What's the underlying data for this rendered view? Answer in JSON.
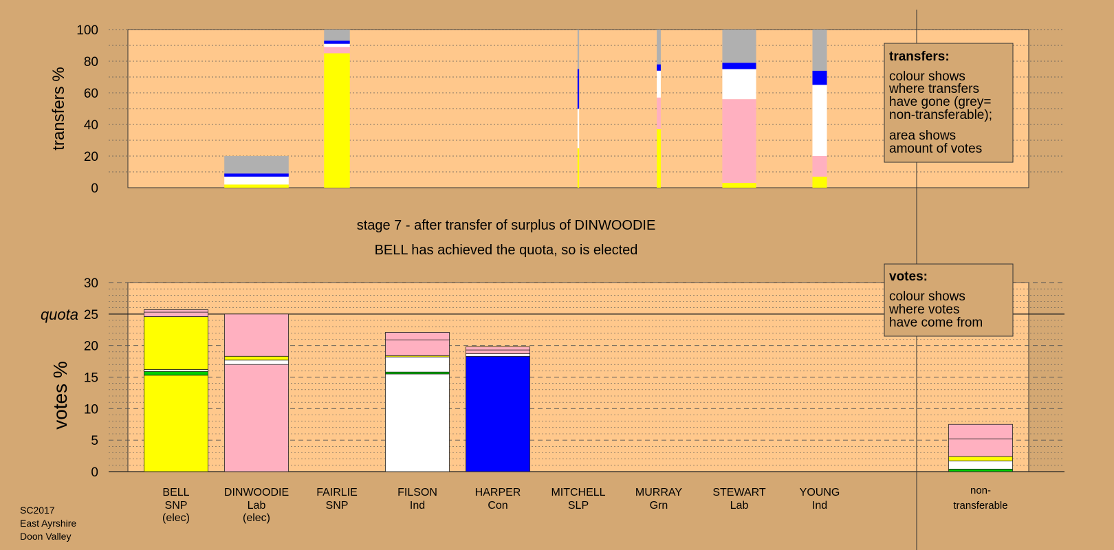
{
  "colors": {
    "background": "#d4a873",
    "plot_background": "#ffc88c",
    "SNP": "#ffff00",
    "Lab": "#ffb0c0",
    "Ind": "#ffffff",
    "Con": "#0000ff",
    "SLP": "#ff0000",
    "Grn": "#00cc00",
    "nontransferable": "#b0b0b0"
  },
  "chart_data": [
    {
      "type": "bar",
      "stacked": true,
      "ylabel": "transfers %",
      "ylim": [
        0,
        100
      ],
      "yticks": [
        0,
        20,
        40,
        60,
        80,
        100
      ],
      "categories": [
        "BELL",
        "DINWOODIE",
        "FAIRLIE",
        "FILSON",
        "HARPER",
        "MITCHELL",
        "MURRAY",
        "STEWART",
        "YOUNG"
      ],
      "note": "bar width shows amount of votes transferred",
      "bars": [
        {
          "candidate": "DINWOODIE",
          "width": 0.8,
          "segments": [
            {
              "color": "SNP",
              "value": 2
            },
            {
              "color": "Ind",
              "value": 5
            },
            {
              "color": "Con",
              "value": 2
            },
            {
              "color": "nontransferable",
              "value": 11
            }
          ]
        },
        {
          "candidate": "FAIRLIE",
          "width": 0.32,
          "segments": [
            {
              "color": "SNP",
              "value": 85
            },
            {
              "color": "Lab",
              "value": 4
            },
            {
              "color": "Ind",
              "value": 2
            },
            {
              "color": "Con",
              "value": 2
            },
            {
              "color": "nontransferable",
              "value": 7
            }
          ]
        },
        {
          "candidate": "MITCHELL",
          "width": 0.02,
          "segments": [
            {
              "color": "SNP",
              "value": 25
            },
            {
              "color": "Ind",
              "value": 25
            },
            {
              "color": "Con",
              "value": 25
            },
            {
              "color": "nontransferable",
              "value": 25
            }
          ]
        },
        {
          "candidate": "MURRAY",
          "width": 0.05,
          "segments": [
            {
              "color": "SNP",
              "value": 37
            },
            {
              "color": "Lab",
              "value": 20
            },
            {
              "color": "Ind",
              "value": 17
            },
            {
              "color": "Con",
              "value": 4
            },
            {
              "color": "nontransferable",
              "value": 22
            }
          ]
        },
        {
          "candidate": "STEWART",
          "width": 0.42,
          "segments": [
            {
              "color": "SNP",
              "value": 3
            },
            {
              "color": "Lab",
              "value": 53
            },
            {
              "color": "Ind",
              "value": 19
            },
            {
              "color": "Con",
              "value": 4
            },
            {
              "color": "nontransferable",
              "value": 21
            }
          ]
        },
        {
          "candidate": "YOUNG",
          "width": 0.18,
          "segments": [
            {
              "color": "SNP",
              "value": 7
            },
            {
              "color": "Lab",
              "value": 13
            },
            {
              "color": "Ind",
              "value": 45
            },
            {
              "color": "Con",
              "value": 9
            },
            {
              "color": "nontransferable",
              "value": 26
            }
          ]
        }
      ]
    },
    {
      "type": "bar",
      "stacked": true,
      "ylabel": "votes %",
      "ylim": [
        0,
        30
      ],
      "yticks": [
        0,
        5,
        10,
        15,
        20,
        25,
        30
      ],
      "quota": 25,
      "quota_label": "quota",
      "categories": [
        "BELL",
        "DINWOODIE",
        "FAIRLIE",
        "FILSON",
        "HARPER",
        "MITCHELL",
        "MURRAY",
        "STEWART",
        "YOUNG",
        "non-transferable"
      ],
      "bars": [
        {
          "candidate": "BELL",
          "segments": [
            {
              "color": "SNP",
              "value": 15.3
            },
            {
              "color": "Grn",
              "value": 0.6
            },
            {
              "color": "Ind",
              "value": 0.3
            },
            {
              "color": "SNP",
              "value": 8.4
            },
            {
              "color": "Lab",
              "value": 0.7
            },
            {
              "color": "Lab",
              "value": 0.4
            }
          ]
        },
        {
          "candidate": "DINWOODIE",
          "segments": [
            {
              "color": "Lab",
              "value": 17.0
            },
            {
              "color": "Ind",
              "value": 0.7
            },
            {
              "color": "SNP",
              "value": 0.6
            },
            {
              "color": "Lab",
              "value": 6.7
            }
          ]
        },
        {
          "candidate": "FAIRLIE",
          "segments": []
        },
        {
          "candidate": "FILSON",
          "segments": [
            {
              "color": "Ind",
              "value": 15.5
            },
            {
              "color": "Grn",
              "value": 0.3
            },
            {
              "color": "Ind",
              "value": 2.4
            },
            {
              "color": "SNP",
              "value": 0.2
            },
            {
              "color": "Lab",
              "value": 2.5
            },
            {
              "color": "Lab",
              "value": 1.2
            }
          ]
        },
        {
          "candidate": "HARPER",
          "segments": [
            {
              "color": "Con",
              "value": 18.3
            },
            {
              "color": "Ind",
              "value": 0.4
            },
            {
              "color": "Lab",
              "value": 0.6
            },
            {
              "color": "Lab",
              "value": 0.5
            }
          ]
        },
        {
          "candidate": "MITCHELL",
          "segments": []
        },
        {
          "candidate": "MURRAY",
          "segments": []
        },
        {
          "candidate": "STEWART",
          "segments": []
        },
        {
          "candidate": "YOUNG",
          "segments": []
        },
        {
          "candidate": "non-transferable",
          "segments": [
            {
              "color": "Grn",
              "value": 0.4
            },
            {
              "color": "Ind",
              "value": 1.3
            },
            {
              "color": "SNP",
              "value": 0.7
            },
            {
              "color": "Lab",
              "value": 2.8
            },
            {
              "color": "Lab",
              "value": 2.3
            }
          ]
        }
      ]
    }
  ],
  "stage_title": "stage 7 - after transfer of surplus of DINWOODIE",
  "stage_subtitle": "BELL has achieved the quota, so is elected",
  "transfers_legend": {
    "heading": "transfers:",
    "lines": [
      "colour shows",
      "where transfers",
      "have gone (grey=",
      "non-transferable);"
    ],
    "lines2": [
      "area shows",
      "amount of votes"
    ]
  },
  "votes_legend": {
    "heading": "votes:",
    "lines": [
      "colour shows",
      "where votes",
      "have come from"
    ]
  },
  "candidates": [
    {
      "name": "BELL",
      "party": "SNP",
      "status": "(elec)"
    },
    {
      "name": "DINWOODIE",
      "party": "Lab",
      "status": "(elec)"
    },
    {
      "name": "FAIRLIE",
      "party": "SNP",
      "status": ""
    },
    {
      "name": "FILSON",
      "party": "Ind",
      "status": ""
    },
    {
      "name": "HARPER",
      "party": "Con",
      "status": ""
    },
    {
      "name": "MITCHELL",
      "party": "SLP",
      "status": ""
    },
    {
      "name": "MURRAY",
      "party": "Grn",
      "status": ""
    },
    {
      "name": "STEWART",
      "party": "Lab",
      "status": ""
    },
    {
      "name": "YOUNG",
      "party": "Ind",
      "status": ""
    }
  ],
  "nontransferable_label": [
    "non-",
    "transferable"
  ],
  "footer": [
    "SC2017",
    "East Ayrshire",
    "Doon Valley"
  ]
}
